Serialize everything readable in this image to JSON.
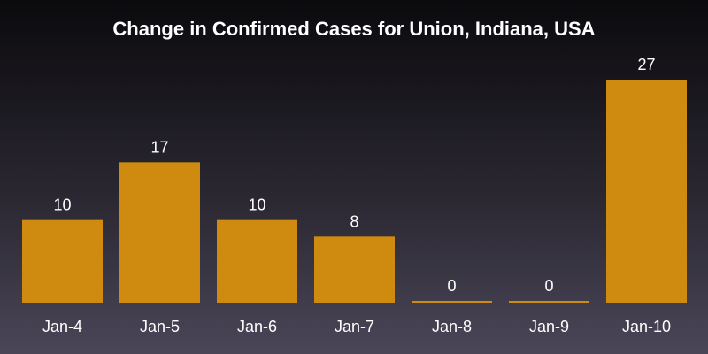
{
  "chart_data": {
    "type": "bar",
    "title": "Change in Confirmed Cases for Union, Indiana, USA",
    "categories": [
      "Jan-4",
      "Jan-5",
      "Jan-6",
      "Jan-7",
      "Jan-8",
      "Jan-9",
      "Jan-10"
    ],
    "values": [
      10,
      17,
      10,
      8,
      0,
      0,
      27
    ],
    "xlabel": "",
    "ylabel": "",
    "ylim": [
      0,
      27
    ],
    "grid": false,
    "show_value_labels": true,
    "colors": {
      "bar": "#cf8b10",
      "text": "#ffffff",
      "background_top": "#0b0a0d",
      "background_bottom": "#4a4658"
    }
  }
}
